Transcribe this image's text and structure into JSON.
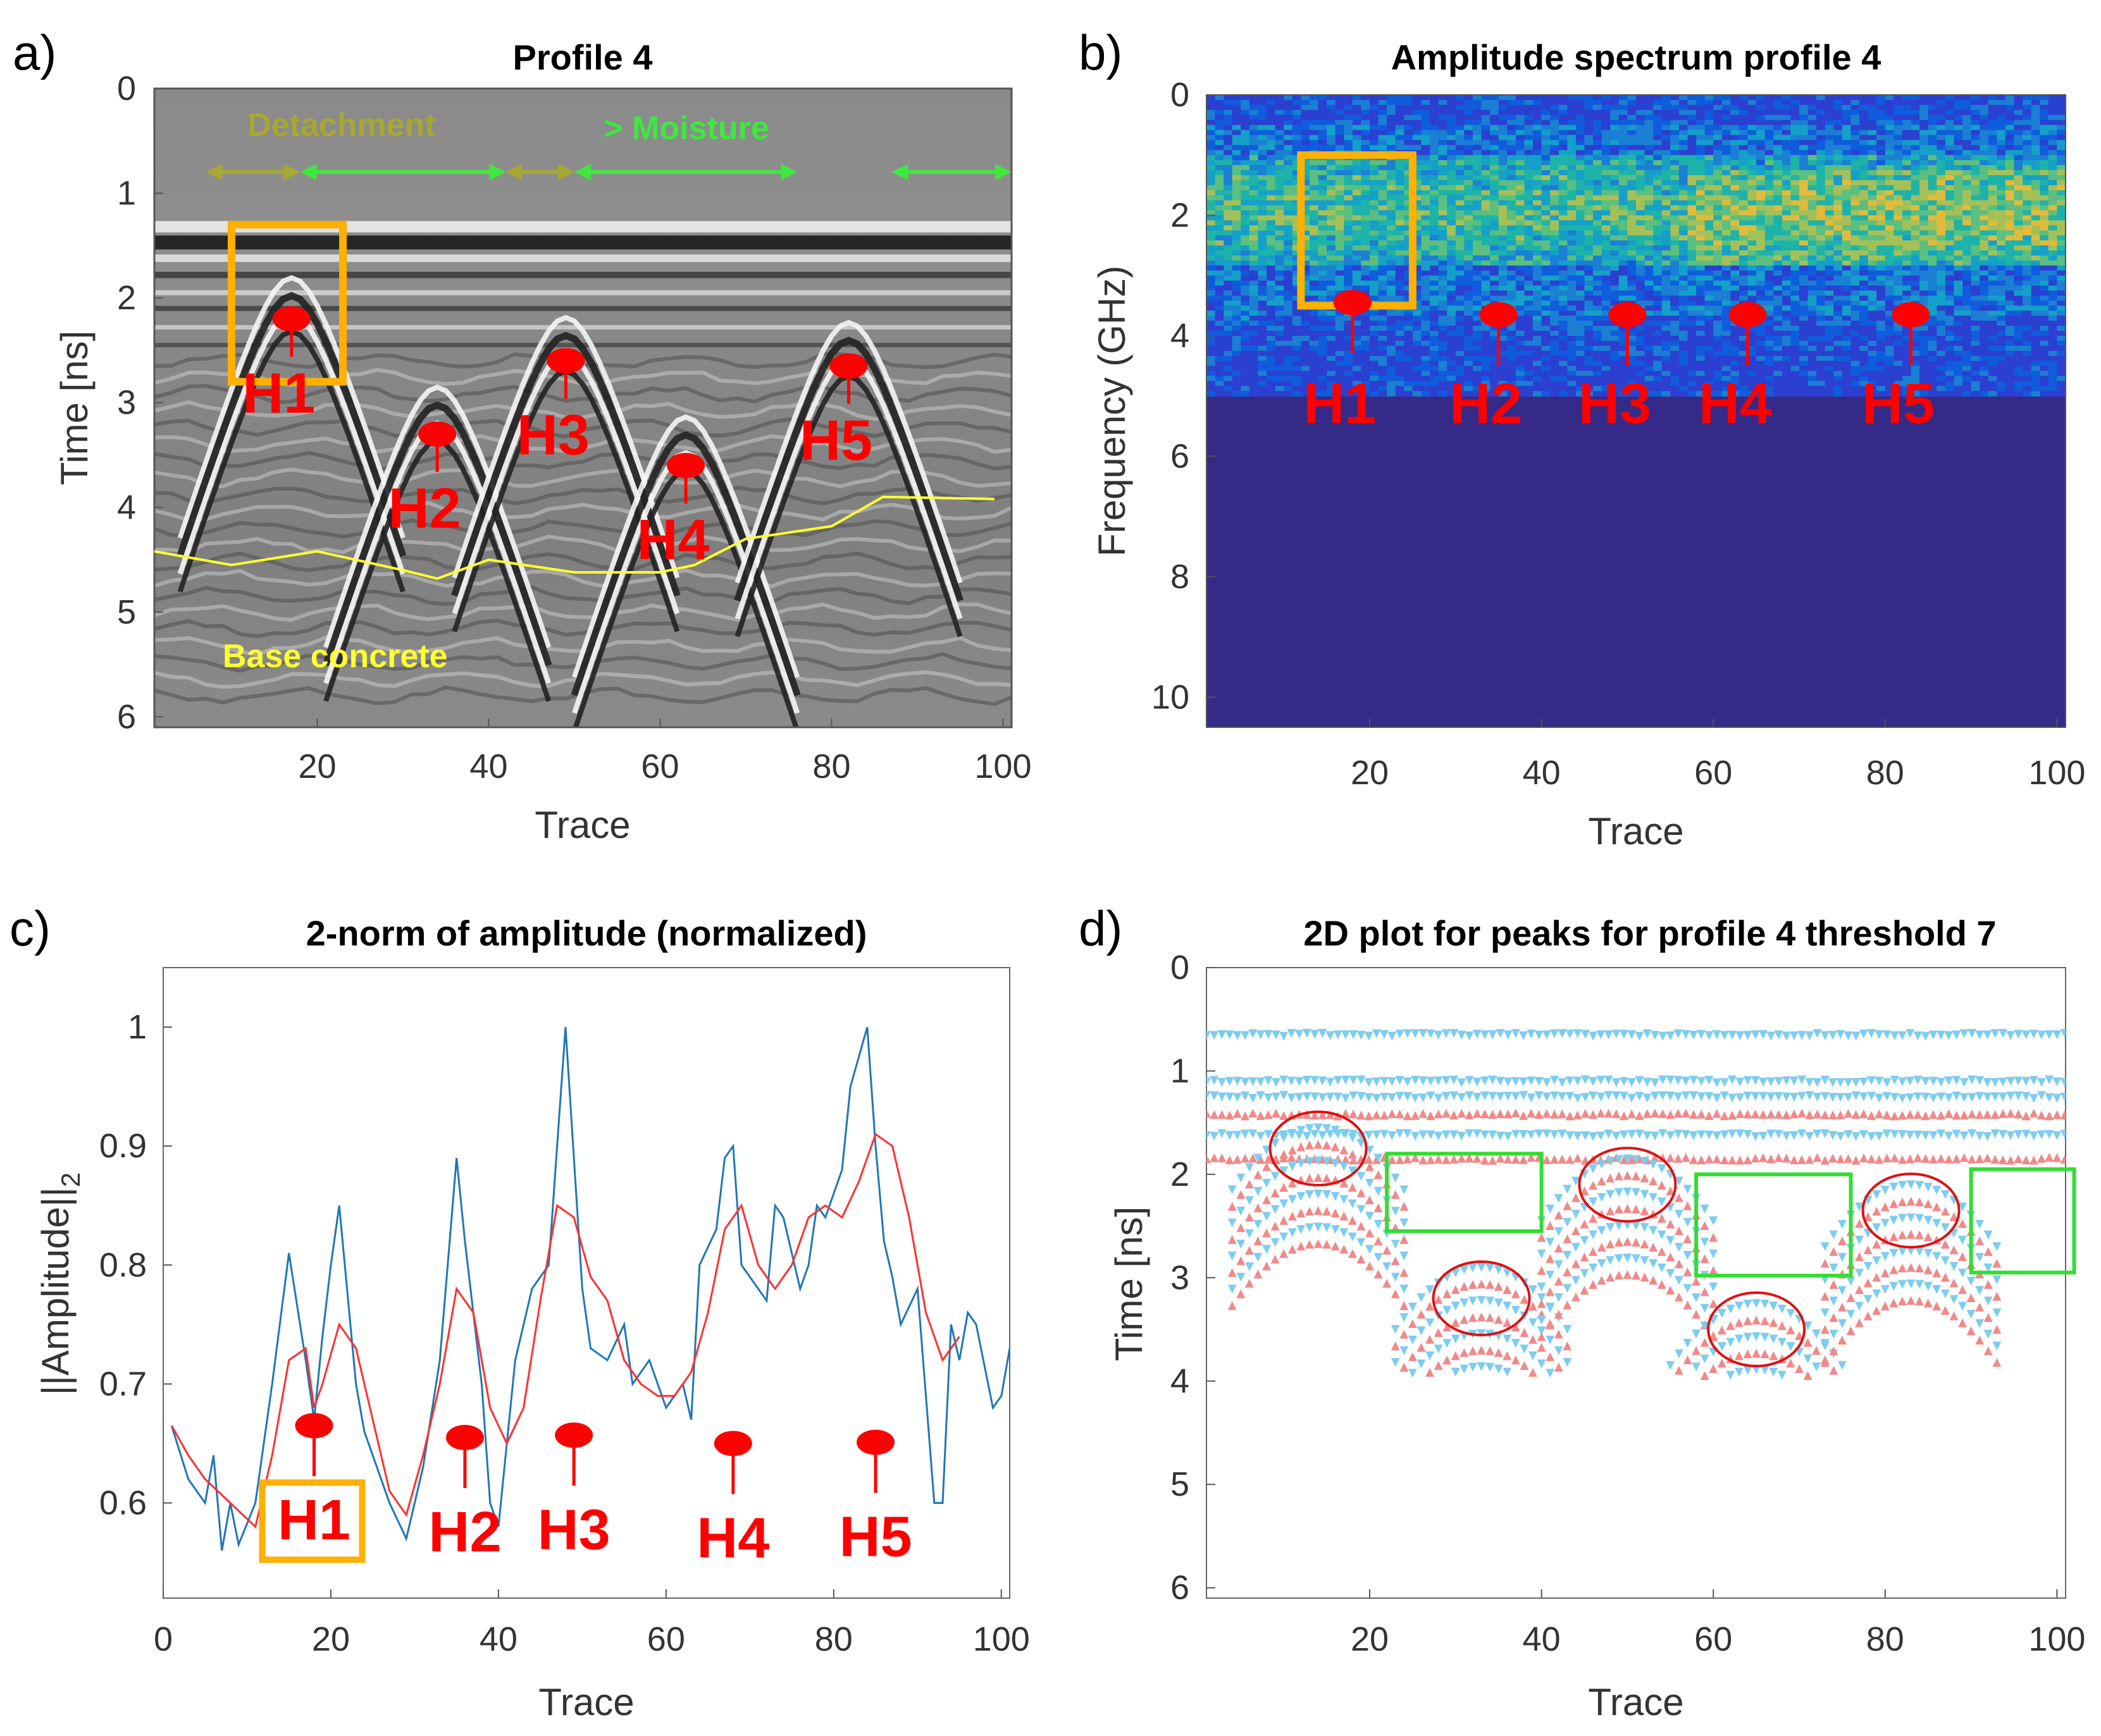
{
  "colors": {
    "marker": "#ff0000",
    "highlight": "#ffb000",
    "moisture": "#3ee83e",
    "detachment": "#a8a832",
    "base": "#ffff33",
    "blue_line": "#1f77b4",
    "red_line": "#ff3030",
    "cyan": "#7ecdf0",
    "pink": "#f08a8a",
    "green_box": "#33dd33"
  },
  "chart_data": [
    {
      "panel": "a)",
      "type": "heatmap",
      "title": "Profile 4",
      "xlabel": "Trace",
      "ylabel": "Time [ns]",
      "xlim": [
        1,
        101
      ],
      "ylim": [
        0,
        6.1
      ],
      "xticks": [
        "20",
        "40",
        "60",
        "80",
        "100"
      ],
      "yticks": [
        "0",
        "1",
        "2",
        "3",
        "4",
        "5",
        "6"
      ],
      "annotations": {
        "detachment": "Detachment",
        "moisture": "> Moisture",
        "base": "Base concrete"
      },
      "detachment_spans": [
        [
          7,
          18
        ],
        [
          42,
          50
        ]
      ],
      "moisture_spans": [
        [
          18,
          42
        ],
        [
          50,
          76
        ],
        [
          87,
          101
        ]
      ],
      "hyperbolas": [
        {
          "label": "H1",
          "trace": 17,
          "time": 2.2
        },
        {
          "label": "H2",
          "trace": 34,
          "time": 3.3
        },
        {
          "label": "H3",
          "trace": 49,
          "time": 2.6
        },
        {
          "label": "H4",
          "trace": 63,
          "time": 3.6
        },
        {
          "label": "H5",
          "trace": 82,
          "time": 2.65
        }
      ],
      "base_concrete": {
        "x": [
          1,
          10,
          20,
          30,
          34,
          40,
          50,
          60,
          64,
          70,
          80,
          86,
          99
        ],
        "y": [
          4.42,
          4.55,
          4.42,
          4.6,
          4.68,
          4.5,
          4.62,
          4.62,
          4.55,
          4.3,
          4.18,
          3.9,
          3.92
        ]
      },
      "highlight_box": {
        "x": [
          10,
          23
        ],
        "y": [
          1.3,
          2.8
        ]
      }
    },
    {
      "panel": "b)",
      "type": "heatmap",
      "title": "Amplitude spectrum profile 4",
      "xlabel": "Trace",
      "ylabel": "Frequency (GHz)",
      "xlim": [
        1,
        101
      ],
      "ylim": [
        0,
        10.5
      ],
      "xticks": [
        "20",
        "40",
        "60",
        "80",
        "100"
      ],
      "yticks": [
        "0",
        "2",
        "4",
        "6",
        "8",
        "10"
      ],
      "markers": [
        {
          "label": "H1",
          "trace": 18
        },
        {
          "label": "H2",
          "trace": 35
        },
        {
          "label": "H3",
          "trace": 50
        },
        {
          "label": "H4",
          "trace": 64
        },
        {
          "label": "H5",
          "trace": 83
        }
      ],
      "highlight_box": {
        "x": [
          12,
          25
        ],
        "y": [
          1.0,
          3.5
        ]
      }
    },
    {
      "panel": "c)",
      "type": "line",
      "title": "2-norm of amplitude (normalized)",
      "xlabel": "Trace",
      "ylabel": "||Amplitude||",
      "ylabel_sub": "2",
      "xlim": [
        0,
        101
      ],
      "ylim": [
        0.52,
        1.05
      ],
      "xticks": [
        "0",
        "20",
        "40",
        "60",
        "80",
        "100"
      ],
      "yticks": [
        "0.6",
        "0.7",
        "0.8",
        "0.9",
        "1"
      ],
      "series": [
        {
          "name": "raw",
          "x": [
            1,
            3,
            5,
            6,
            7,
            8,
            9,
            11,
            13,
            15,
            17,
            18,
            19,
            20,
            21,
            23,
            24,
            27,
            29,
            31,
            33,
            35,
            36,
            38,
            39,
            40,
            42,
            44,
            46,
            47,
            48,
            50,
            51,
            53,
            55,
            56,
            58,
            60,
            62,
            63,
            64,
            66,
            67,
            68,
            69,
            70,
            72,
            73,
            74,
            76,
            77,
            78,
            79,
            81,
            82,
            84,
            85,
            86,
            87,
            88,
            90,
            92,
            93,
            94,
            95,
            96,
            97,
            99,
            100,
            101
          ],
          "values": [
            0.665,
            0.62,
            0.6,
            0.64,
            0.56,
            0.6,
            0.565,
            0.6,
            0.7,
            0.81,
            0.72,
            0.67,
            0.74,
            0.8,
            0.85,
            0.7,
            0.66,
            0.6,
            0.57,
            0.63,
            0.72,
            0.89,
            0.82,
            0.7,
            0.6,
            0.58,
            0.72,
            0.78,
            0.8,
            0.9,
            1.0,
            0.78,
            0.73,
            0.72,
            0.75,
            0.7,
            0.72,
            0.68,
            0.7,
            0.67,
            0.8,
            0.83,
            0.89,
            0.9,
            0.8,
            0.79,
            0.77,
            0.85,
            0.84,
            0.78,
            0.8,
            0.85,
            0.84,
            0.88,
            0.95,
            1.0,
            0.9,
            0.82,
            0.79,
            0.75,
            0.78,
            0.6,
            0.6,
            0.75,
            0.72,
            0.76,
            0.75,
            0.68,
            0.69,
            0.73
          ]
        },
        {
          "name": "smoothed",
          "x": [
            1,
            3,
            5,
            8,
            11,
            13,
            15,
            17,
            18,
            19,
            21,
            23,
            25,
            27,
            29,
            31,
            33,
            35,
            37,
            39,
            41,
            43,
            45,
            47,
            49,
            51,
            53,
            55,
            57,
            59,
            61,
            63,
            65,
            67,
            69,
            71,
            73,
            75,
            77,
            79,
            81,
            83,
            85,
            87,
            89,
            91,
            93,
            95
          ],
          "values": [
            0.665,
            0.64,
            0.62,
            0.6,
            0.58,
            0.64,
            0.72,
            0.73,
            0.68,
            0.7,
            0.75,
            0.73,
            0.67,
            0.61,
            0.59,
            0.64,
            0.7,
            0.78,
            0.76,
            0.68,
            0.65,
            0.68,
            0.77,
            0.85,
            0.84,
            0.79,
            0.77,
            0.72,
            0.7,
            0.69,
            0.69,
            0.71,
            0.76,
            0.83,
            0.85,
            0.8,
            0.78,
            0.8,
            0.84,
            0.85,
            0.84,
            0.87,
            0.91,
            0.9,
            0.84,
            0.76,
            0.72,
            0.74
          ]
        }
      ],
      "markers": [
        {
          "label": "H1",
          "trace": 18,
          "y": 0.665
        },
        {
          "label": "H2",
          "trace": 36,
          "y": 0.655
        },
        {
          "label": "H3",
          "trace": 49,
          "y": 0.657
        },
        {
          "label": "H4",
          "trace": 68,
          "y": 0.65
        },
        {
          "label": "H5",
          "trace": 85,
          "y": 0.651
        }
      ],
      "highlight_label": "H1"
    },
    {
      "panel": "d)",
      "type": "scatter",
      "title": "2D plot for peaks for profile 4 threshold 7",
      "xlabel": "Trace",
      "ylabel": "Time [ns]",
      "xlim": [
        1,
        101
      ],
      "ylim": [
        0,
        6.1
      ],
      "xticks": [
        "20",
        "40",
        "60",
        "80",
        "100"
      ],
      "yticks": [
        "0",
        "1",
        "2",
        "3",
        "4",
        "5",
        "6"
      ],
      "circles": [
        {
          "trace": 14,
          "time": 1.75
        },
        {
          "trace": 33,
          "time": 3.2
        },
        {
          "trace": 50,
          "time": 2.1
        },
        {
          "trace": 65,
          "time": 3.5
        },
        {
          "trace": 83,
          "time": 2.35
        }
      ],
      "boxes": [
        {
          "x": [
            22,
            40
          ],
          "y": [
            1.8,
            2.55
          ]
        },
        {
          "x": [
            58,
            76
          ],
          "y": [
            2.0,
            2.98
          ]
        },
        {
          "x": [
            90,
            102
          ],
          "y": [
            1.95,
            2.95
          ]
        }
      ]
    }
  ]
}
